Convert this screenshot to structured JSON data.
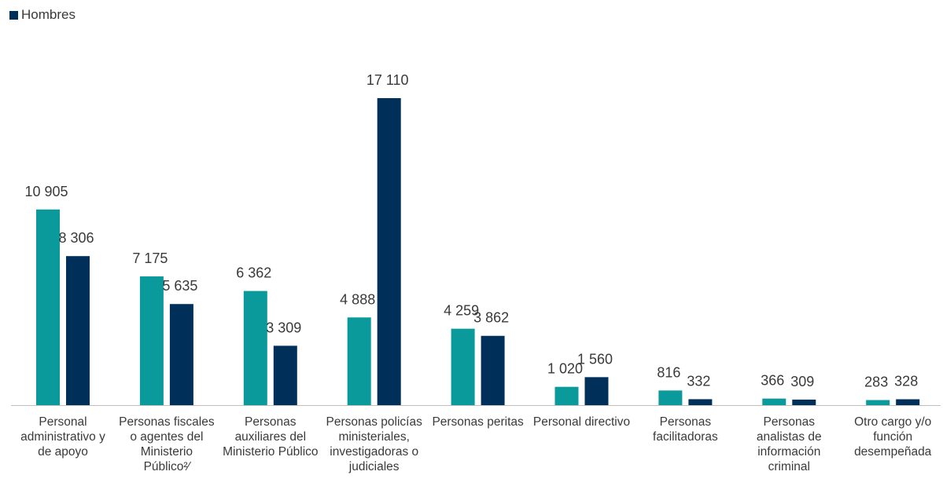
{
  "chart_data": {
    "type": "bar",
    "categories": [
      "Personal administrativo y de apoyo",
      "Personas fiscales o agentes del Ministerio Público²⁄",
      "Personas auxiliares del Ministerio Público",
      "Personas policías ministeriales, investigadoras o judiciales",
      "Personas peritas",
      "Personal directivo",
      "Personas facilitadoras",
      "Personas analistas de información criminal",
      "Otro cargo y/o función desempeñada"
    ],
    "series": [
      {
        "color": "#0a9a9b",
        "values": [
          10905,
          7175,
          6362,
          4888,
          4259,
          1020,
          816,
          366,
          283
        ],
        "value_labels": [
          "10 905",
          "7 175",
          "6 362",
          "4 888",
          "4 259",
          "1 020",
          "816",
          "366",
          "283"
        ]
      },
      {
        "name": "Hombres",
        "color": "#00305a",
        "values": [
          8306,
          5635,
          3309,
          17110,
          3862,
          1560,
          332,
          309,
          328
        ],
        "value_labels": [
          "8 306",
          "5 635",
          "3 309",
          "17 110",
          "3 862",
          "1 560",
          "332",
          "309",
          "328"
        ]
      }
    ],
    "legend": "top-left",
    "grid": false
  }
}
